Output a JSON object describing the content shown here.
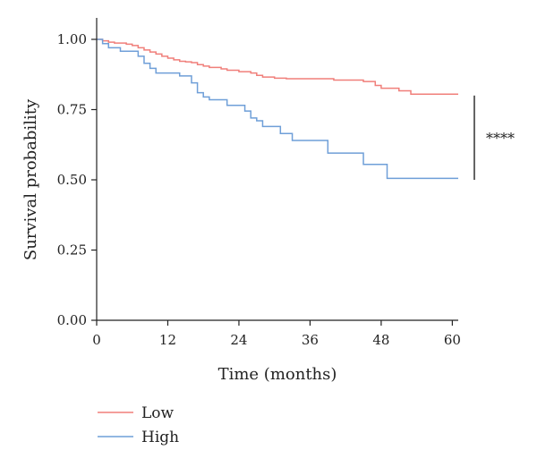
{
  "chart_data": {
    "type": "line",
    "step": true,
    "xlabel": "Time (months)",
    "ylabel": "Survival probability",
    "xlim": [
      0,
      61
    ],
    "ylim": [
      0,
      1
    ],
    "x_ticks": [
      0,
      12,
      24,
      36,
      48,
      60
    ],
    "x_tick_labels": [
      "0",
      "12",
      "24",
      "36",
      "48",
      "60"
    ],
    "y_ticks": [
      0,
      0.25,
      0.5,
      0.75,
      1.0
    ],
    "y_tick_labels": [
      "0.00",
      "0.25",
      "0.50",
      "0.75",
      "1.00"
    ],
    "grid": false,
    "legend_position": "bottom-left",
    "significance_label": "****",
    "significance_y_range": [
      0.5,
      0.8
    ],
    "series": [
      {
        "name": "Low",
        "color": "#f07f7a",
        "points": [
          [
            0,
            1.0
          ],
          [
            1,
            0.995
          ],
          [
            2,
            0.99
          ],
          [
            3,
            0.987
          ],
          [
            5,
            0.983
          ],
          [
            6,
            0.978
          ],
          [
            7,
            0.97
          ],
          [
            8,
            0.962
          ],
          [
            9,
            0.955
          ],
          [
            10,
            0.948
          ],
          [
            11,
            0.94
          ],
          [
            12,
            0.933
          ],
          [
            13,
            0.927
          ],
          [
            14,
            0.922
          ],
          [
            15,
            0.92
          ],
          [
            16,
            0.917
          ],
          [
            17,
            0.91
          ],
          [
            18,
            0.905
          ],
          [
            19,
            0.9
          ],
          [
            21,
            0.895
          ],
          [
            22,
            0.89
          ],
          [
            24,
            0.885
          ],
          [
            26,
            0.88
          ],
          [
            27,
            0.872
          ],
          [
            28,
            0.866
          ],
          [
            30,
            0.862
          ],
          [
            32,
            0.86
          ],
          [
            40,
            0.855
          ],
          [
            45,
            0.85
          ],
          [
            47,
            0.836
          ],
          [
            48,
            0.826
          ],
          [
            51,
            0.817
          ],
          [
            53,
            0.805
          ],
          [
            61,
            0.805
          ]
        ]
      },
      {
        "name": "High",
        "color": "#6f9fd8",
        "points": [
          [
            0,
            1.0
          ],
          [
            1,
            0.985
          ],
          [
            2,
            0.97
          ],
          [
            4,
            0.958
          ],
          [
            7,
            0.94
          ],
          [
            8,
            0.915
          ],
          [
            9,
            0.897
          ],
          [
            10,
            0.88
          ],
          [
            14,
            0.87
          ],
          [
            16,
            0.845
          ],
          [
            17,
            0.81
          ],
          [
            18,
            0.795
          ],
          [
            19,
            0.785
          ],
          [
            22,
            0.765
          ],
          [
            25,
            0.745
          ],
          [
            26,
            0.72
          ],
          [
            27,
            0.71
          ],
          [
            28,
            0.69
          ],
          [
            31,
            0.665
          ],
          [
            33,
            0.64
          ],
          [
            39,
            0.595
          ],
          [
            45,
            0.555
          ],
          [
            49,
            0.505
          ],
          [
            61,
            0.505
          ]
        ]
      }
    ]
  }
}
